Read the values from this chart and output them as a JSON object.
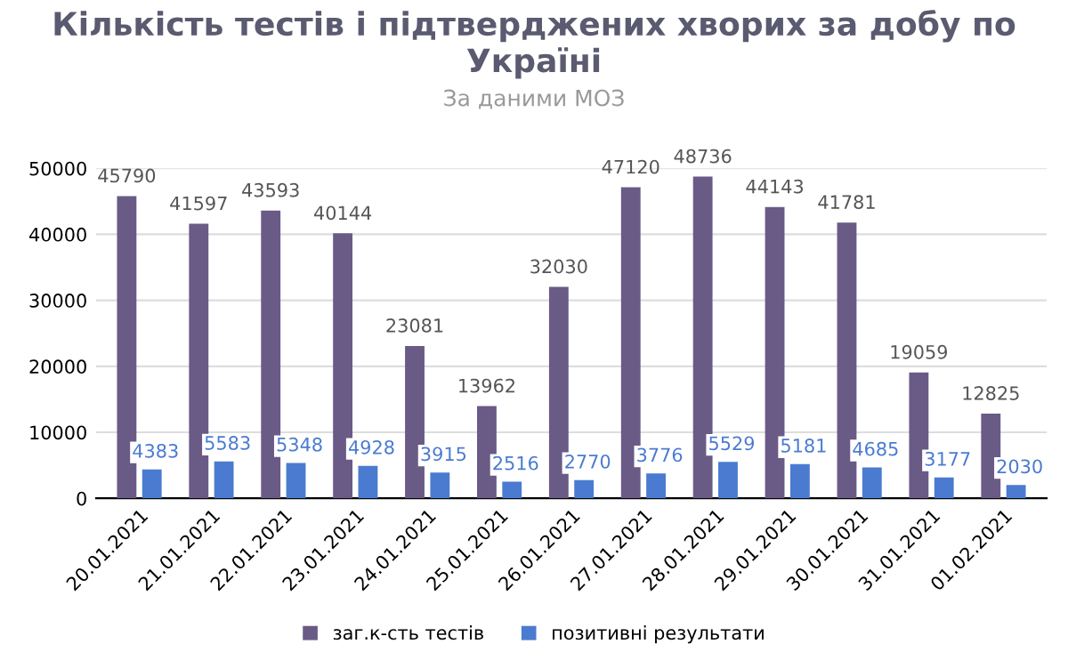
{
  "chart_data": {
    "type": "bar",
    "title": "Кількість тестів і підтверджених хворих за добу по Україні",
    "subtitle": "За даними МОЗ",
    "categories": [
      "20.01.2021",
      "21.01.2021",
      "22.01.2021",
      "23.01.2021",
      "24.01.2021",
      "25.01.2021",
      "26.01.2021",
      "27.01.2021",
      "28.01.2021",
      "29.01.2021",
      "30.01.2021",
      "31.01.2021",
      "01.02.2021"
    ],
    "series": [
      {
        "name": "заг.к-сть тестів",
        "color": "#6a5a86",
        "values": [
          45790,
          41597,
          43593,
          40144,
          23081,
          13962,
          32030,
          47120,
          48736,
          44143,
          41781,
          19059,
          12825
        ]
      },
      {
        "name": "позитивні результати",
        "color": "#4a7bd0",
        "values": [
          4383,
          5583,
          5348,
          4928,
          3915,
          2516,
          2770,
          3776,
          5529,
          5181,
          4685,
          3177,
          2030
        ]
      }
    ],
    "ylim": [
      0,
      50000
    ],
    "yticks": [
      0,
      10000,
      20000,
      30000,
      40000,
      50000
    ],
    "grid": "y",
    "legend": "bottom",
    "data_labels": true
  }
}
